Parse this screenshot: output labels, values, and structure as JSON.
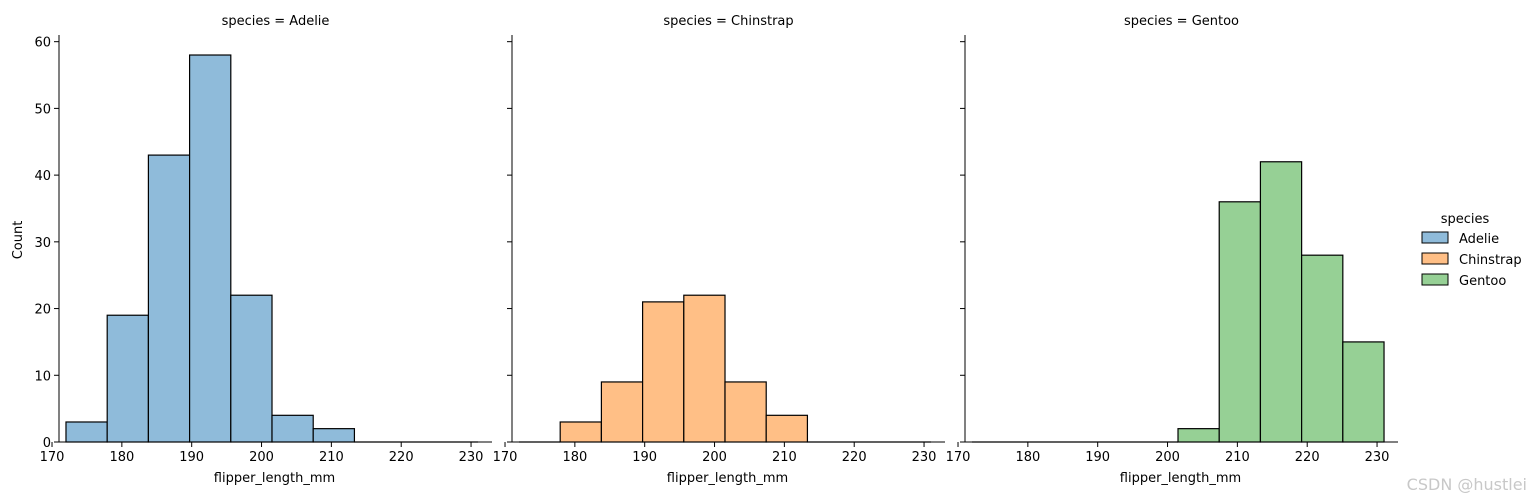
{
  "chart_data": {
    "type": "bar",
    "kind": "faceted histogram",
    "xlabel": "flipper_length_mm",
    "ylabel": "Count",
    "xlim": [
      171,
      233
    ],
    "ylim": [
      0,
      61
    ],
    "xticks": [
      170,
      180,
      190,
      200,
      210,
      220,
      230
    ],
    "yticks": [
      0,
      10,
      20,
      30,
      40,
      50,
      60
    ],
    "bin_edges": [
      172.0,
      177.9,
      183.8,
      189.7,
      195.6,
      201.5,
      207.4,
      213.3,
      219.2,
      225.1,
      231.0
    ],
    "legend": {
      "title": "species",
      "position": "right"
    },
    "panels": [
      {
        "title": "species = Adelie",
        "name": "Adelie",
        "color": "#8fbbda",
        "counts": [
          3,
          19,
          43,
          58,
          22,
          4,
          2,
          0,
          0,
          0
        ]
      },
      {
        "title": "species = Chinstrap",
        "name": "Chinstrap",
        "color": "#ffbf86",
        "counts": [
          0,
          3,
          9,
          21,
          22,
          9,
          4,
          0,
          0,
          0
        ]
      },
      {
        "title": "species = Gentoo",
        "name": "Gentoo",
        "color": "#96d095",
        "counts": [
          0,
          0,
          0,
          0,
          0,
          2,
          36,
          42,
          28,
          15
        ]
      }
    ]
  },
  "watermark": "CSDN @hustlei"
}
